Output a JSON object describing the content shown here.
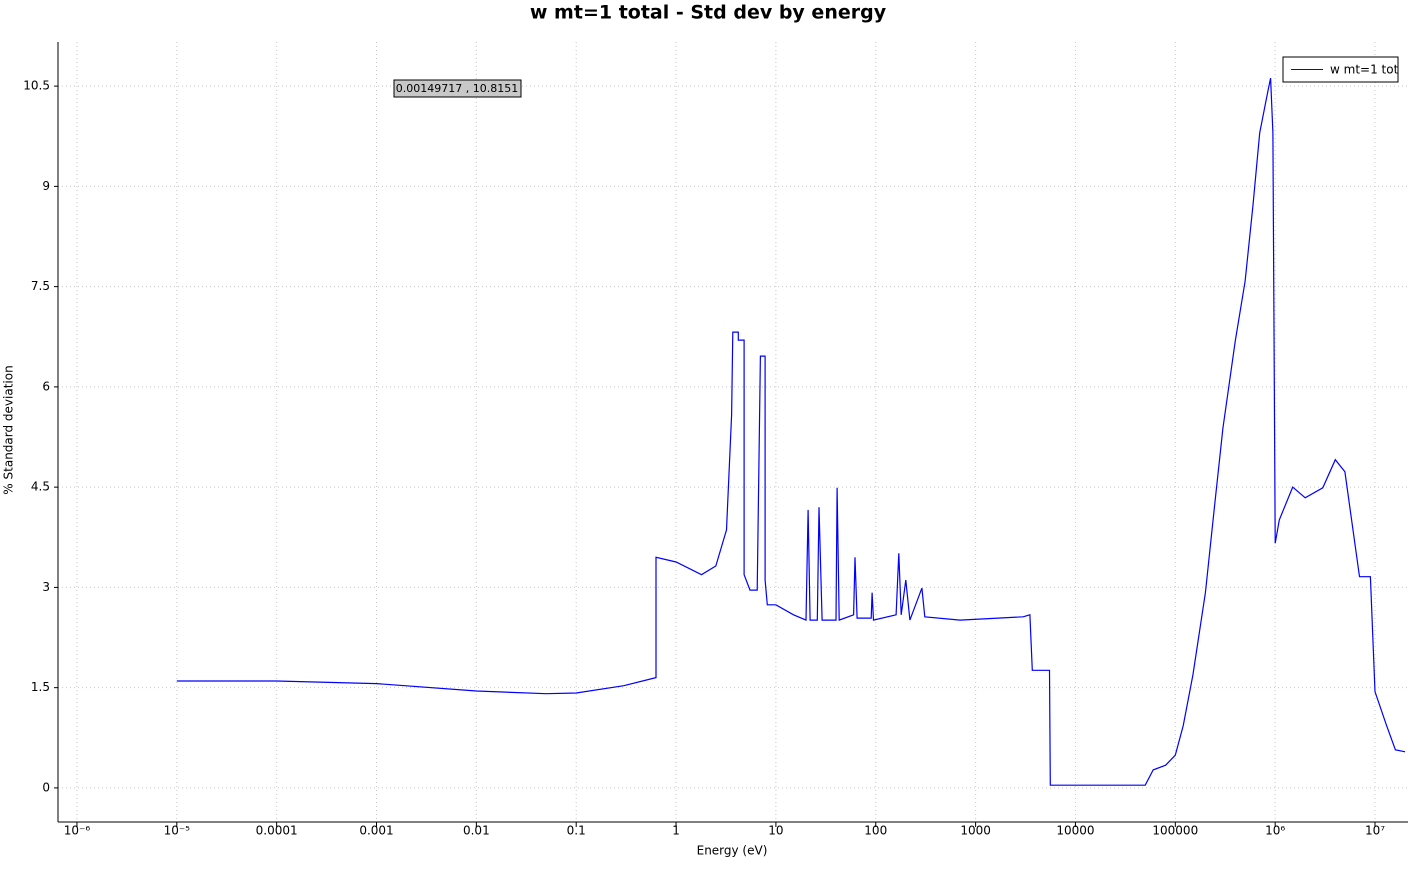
{
  "chart_data": {
    "type": "line",
    "title": "w mt=1 total - Std dev by energy",
    "x_label": "Energy (eV)",
    "y_label": "% Standard deviation",
    "annotation": "0.00149717 , 10.8151",
    "xscale": "log",
    "grid": true,
    "legend": "upper right",
    "xlim": [
      6.46e-07,
      21400000.0
    ],
    "ylim": [
      -0.51,
      11.16
    ],
    "xticks": [
      {
        "value": 1e-06,
        "label": "10⁻⁶"
      },
      {
        "value": 1e-05,
        "label": "10⁻⁵"
      },
      0.0001,
      0.001,
      0.01,
      0.1,
      1,
      10,
      100,
      1000,
      10000,
      100000,
      {
        "value": 1000000,
        "label": "10⁶"
      },
      {
        "value": 10000000,
        "label": "10⁷"
      }
    ],
    "yticks": [
      0,
      1.5,
      3,
      4.5,
      6,
      7.5,
      9,
      10.5
    ],
    "series": [
      {
        "name": "w mt=1 tot",
        "color": "#0000ff",
        "x": [
          1e-05,
          0.0001,
          0.001,
          0.01,
          0.05,
          0.1,
          0.3,
          0.63,
          0.63,
          1,
          1.8,
          2.5,
          3.2,
          3.6,
          3.7,
          4.2,
          4.2,
          4.8,
          4.8,
          5.5,
          6.5,
          7.0,
          7.8,
          7.8,
          8.2,
          10,
          15,
          20,
          21,
          22,
          26,
          27,
          29,
          40,
          41,
          43,
          60,
          62,
          65,
          90,
          92,
          95,
          160,
          170,
          180,
          200,
          220,
          290,
          310,
          700,
          3000,
          3500,
          3700,
          5500,
          5600,
          50000,
          60000,
          80000,
          100000,
          120000,
          150000,
          200000,
          250000,
          300000,
          400000,
          500000,
          600000,
          700000,
          850000,
          900000,
          950000,
          1000000,
          1100000,
          1500000,
          2000000,
          3000000,
          4000000,
          5000000,
          7000000,
          9000000,
          10000000,
          13000000,
          16000000,
          20000000
        ],
        "values": [
          1.6,
          1.6,
          1.56,
          1.45,
          1.41,
          1.42,
          1.53,
          1.65,
          3.45,
          3.38,
          3.19,
          3.32,
          3.86,
          5.58,
          6.82,
          6.82,
          6.7,
          6.7,
          3.19,
          2.96,
          2.96,
          6.46,
          6.46,
          3.11,
          2.74,
          2.74,
          2.59,
          2.51,
          4.16,
          2.51,
          2.51,
          4.2,
          2.51,
          2.51,
          4.49,
          2.51,
          2.59,
          3.45,
          2.54,
          2.54,
          2.92,
          2.51,
          2.59,
          3.51,
          2.59,
          3.11,
          2.51,
          2.99,
          2.56,
          2.51,
          2.56,
          2.59,
          1.76,
          1.76,
          0.04,
          0.04,
          0.27,
          0.34,
          0.49,
          0.93,
          1.69,
          2.92,
          4.28,
          5.38,
          6.7,
          7.58,
          8.72,
          9.8,
          10.44,
          10.62,
          9.8,
          3.66,
          4.01,
          4.5,
          4.34,
          4.49,
          4.91,
          4.73,
          3.16,
          3.16,
          1.44,
          0.94,
          0.57,
          0.54
        ]
      }
    ]
  }
}
